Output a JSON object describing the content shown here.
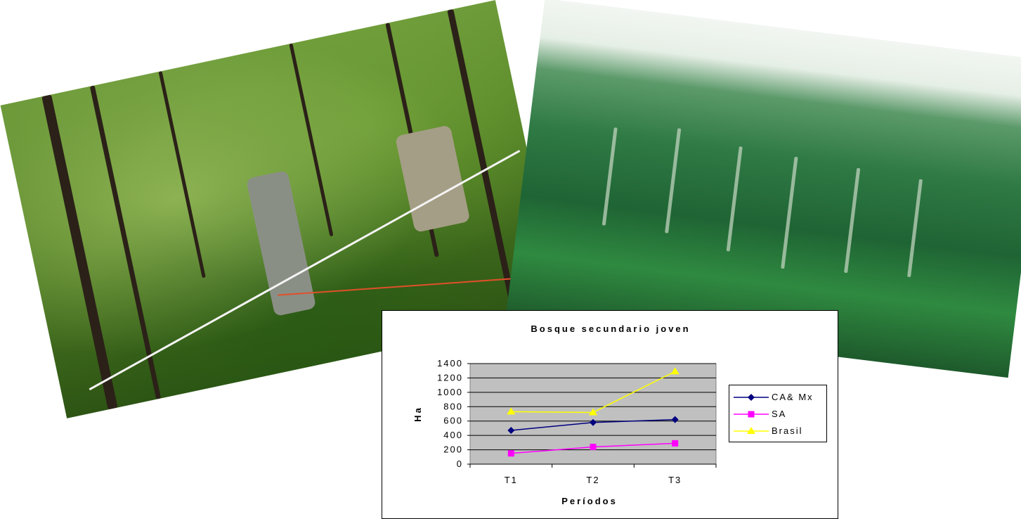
{
  "chart_data": {
    "type": "line",
    "title": "Bosque secundario joven",
    "xlabel": "Períodos",
    "ylabel": "Ha",
    "categories": [
      "T1",
      "T2",
      "T3"
    ],
    "ylim": [
      0,
      1400
    ],
    "yticks": [
      "0",
      "200",
      "400",
      "600",
      "800",
      "1000",
      "1200",
      "1400"
    ],
    "grid": true,
    "legend_position": "right",
    "series": [
      {
        "name": "CA& Mx",
        "values": [
          470,
          580,
          620
        ],
        "color": "#000080",
        "marker": "diamond"
      },
      {
        "name": "SA",
        "values": [
          150,
          240,
          290
        ],
        "color": "#ff00ff",
        "marker": "square"
      },
      {
        "name": "Brasil",
        "values": [
          730,
          720,
          1290
        ],
        "color": "#ffff00",
        "marker": "triangle"
      }
    ],
    "plot_background": "#c0c0c0"
  },
  "photos": [
    {
      "name": "forest-understory-photo"
    },
    {
      "name": "forest-canopy-photo"
    }
  ]
}
